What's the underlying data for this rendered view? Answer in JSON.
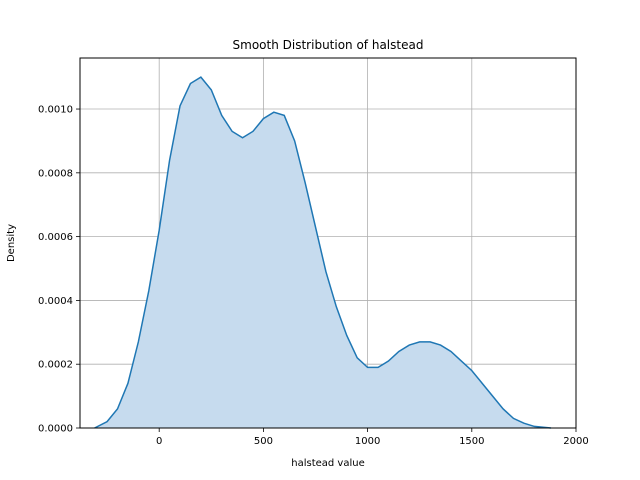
{
  "chart_data": {
    "type": "area",
    "title": "Smooth Distribution of halstead",
    "xlabel": "halstead value",
    "ylabel": "Density",
    "xlim": [
      -380,
      2000
    ],
    "ylim": [
      0,
      0.00116
    ],
    "grid": true,
    "x_ticks": [
      0,
      500,
      1000,
      1500,
      2000
    ],
    "x_tick_labels": [
      "0",
      "500",
      "1000",
      "1500",
      "2000"
    ],
    "y_ticks": [
      0,
      0.0002,
      0.0004,
      0.0006,
      0.0008,
      0.001
    ],
    "y_tick_labels": [
      "0.0000",
      "0.0002",
      "0.0004",
      "0.0006",
      "0.0008",
      "0.0010"
    ],
    "colors": {
      "line": "#1f77b4",
      "fill": "#c6dbee",
      "grid": "#b0b0b0"
    },
    "series": [
      {
        "x": [
          -310,
          -250,
          -200,
          -150,
          -100,
          -50,
          0,
          50,
          100,
          150,
          200,
          250,
          300,
          350,
          400,
          450,
          500,
          550,
          600,
          650,
          700,
          750,
          800,
          850,
          900,
          950,
          1000,
          1050,
          1100,
          1150,
          1200,
          1250,
          1300,
          1350,
          1400,
          1450,
          1500,
          1550,
          1600,
          1650,
          1700,
          1750,
          1800,
          1880
        ],
        "y": [
          0.0,
          2e-05,
          6e-05,
          0.00014,
          0.00027,
          0.00043,
          0.00062,
          0.00084,
          0.00101,
          0.00108,
          0.0011,
          0.00106,
          0.00098,
          0.00093,
          0.00091,
          0.00093,
          0.00097,
          0.00099,
          0.00098,
          0.0009,
          0.00077,
          0.00063,
          0.00049,
          0.00038,
          0.00029,
          0.00022,
          0.00019,
          0.00019,
          0.00021,
          0.00024,
          0.00026,
          0.00027,
          0.00027,
          0.00026,
          0.00024,
          0.00021,
          0.00018,
          0.00014,
          0.0001,
          6e-05,
          3e-05,
          1.5e-05,
          5e-06,
          0.0
        ]
      }
    ]
  }
}
